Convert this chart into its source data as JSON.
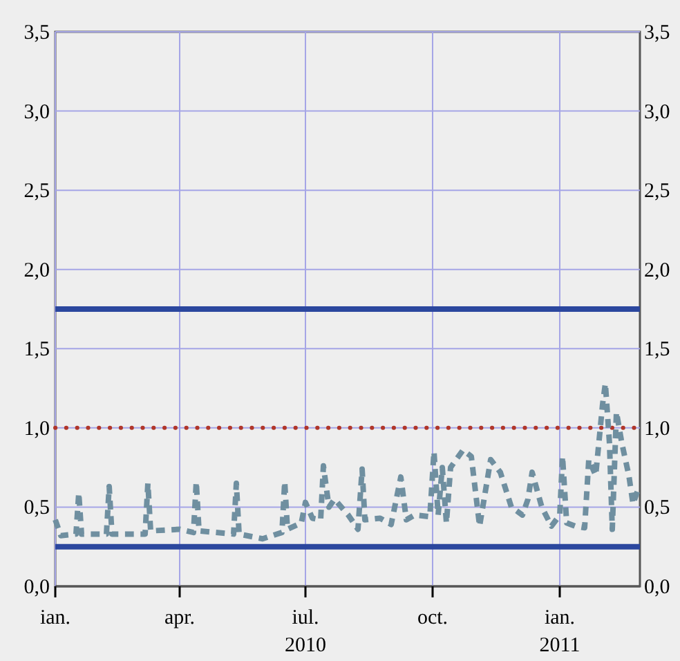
{
  "chart_data": {
    "type": "line",
    "x": [
      "2010-01-01",
      "2010-01-05",
      "2010-01-16",
      "2010-01-18",
      "2010-01-20",
      "2010-02-07",
      "2010-02-09",
      "2010-02-11",
      "2010-03-07",
      "2010-03-09",
      "2010-03-11",
      "2010-04-01",
      "2010-04-11",
      "2010-04-13",
      "2010-04-15",
      "2010-05-10",
      "2010-05-12",
      "2010-05-14",
      "2010-05-31",
      "2010-06-14",
      "2010-06-16",
      "2010-06-18",
      "2010-06-28",
      "2010-07-01",
      "2010-07-06",
      "2010-07-12",
      "2010-07-14",
      "2010-07-18",
      "2010-07-22",
      "2010-08-01",
      "2010-08-08",
      "2010-08-11",
      "2010-08-13",
      "2010-08-24",
      "2010-09-01",
      "2010-09-08",
      "2010-09-12",
      "2010-09-18",
      "2010-09-29",
      "2010-10-02",
      "2010-10-05",
      "2010-10-08",
      "2010-10-11",
      "2010-10-14",
      "2010-10-23",
      "2010-10-29",
      "2010-11-04",
      "2010-11-12",
      "2010-11-19",
      "2010-11-27",
      "2010-12-05",
      "2010-12-09",
      "2010-12-12",
      "2010-12-19",
      "2010-12-26",
      "2011-01-01",
      "2011-01-03",
      "2011-01-06",
      "2011-01-12",
      "2011-01-19",
      "2011-01-22",
      "2011-01-27",
      "2011-02-01",
      "2011-02-03",
      "2011-02-06",
      "2011-02-08",
      "2011-02-11",
      "2011-02-15",
      "2011-02-20",
      "2011-02-23",
      "2011-02-27"
    ],
    "series": [
      {
        "color": "#6f8fa0",
        "line_style": "dashed",
        "values": [
          0.42,
          0.32,
          0.33,
          0.59,
          0.33,
          0.33,
          0.63,
          0.33,
          0.33,
          0.65,
          0.35,
          0.36,
          0.34,
          0.66,
          0.35,
          0.33,
          0.65,
          0.33,
          0.3,
          0.34,
          0.66,
          0.36,
          0.4,
          0.53,
          0.43,
          0.42,
          0.76,
          0.5,
          0.55,
          0.45,
          0.36,
          0.74,
          0.42,
          0.43,
          0.39,
          0.69,
          0.42,
          0.45,
          0.44,
          0.85,
          0.45,
          0.75,
          0.4,
          0.75,
          0.86,
          0.82,
          0.38,
          0.8,
          0.72,
          0.5,
          0.45,
          0.55,
          0.72,
          0.5,
          0.38,
          0.45,
          0.82,
          0.4,
          0.38,
          0.37,
          0.8,
          0.7,
          1.15,
          1.28,
          0.9,
          0.36,
          1.1,
          0.9,
          0.7,
          0.52,
          0.62
        ]
      }
    ],
    "xlim": [
      "2010-01-01",
      "2011-02-28"
    ],
    "xticks": [
      {
        "value": "2010-01-01",
        "label": "ian."
      },
      {
        "value": "2010-04-01",
        "label": "apr."
      },
      {
        "value": "2010-07-01",
        "label": "iul.\n2010"
      },
      {
        "value": "2010-10-01",
        "label": "oct."
      },
      {
        "value": "2011-01-01",
        "label": "ian.\n2011"
      }
    ],
    "ylim": [
      0,
      3.5
    ],
    "yticks": [
      {
        "value": 0,
        "label": "0,0"
      },
      {
        "value": 0.5,
        "label": "0,5"
      },
      {
        "value": 1,
        "label": "1,0"
      },
      {
        "value": 1.5,
        "label": "1,5"
      },
      {
        "value": 2,
        "label": "2,0"
      },
      {
        "value": 2.5,
        "label": "2,5"
      },
      {
        "value": 3,
        "label": "3,0"
      },
      {
        "value": 3.5,
        "label": "3,5"
      }
    ],
    "y2lim": [
      0,
      3.5
    ],
    "y2ticks": [
      {
        "value": 0,
        "label": "0,0"
      },
      {
        "value": 0.5,
        "label": "0,5"
      },
      {
        "value": 1,
        "label": "1,0"
      },
      {
        "value": 1.5,
        "label": "1,5"
      },
      {
        "value": 2,
        "label": "2,0"
      },
      {
        "value": 2.5,
        "label": "2,5"
      },
      {
        "value": 3,
        "label": "3,0"
      },
      {
        "value": 3.5,
        "label": "3,5"
      }
    ],
    "ref_lines": [
      {
        "axis": "y",
        "value": 1.75,
        "color": "#2b479e",
        "line_style": "solid"
      },
      {
        "axis": "y",
        "value": 0.25,
        "color": "#2b479e",
        "line_style": "solid"
      },
      {
        "axis": "y",
        "value": 1,
        "color": "#b0362a",
        "line_style": "dotted"
      }
    ],
    "grid": true
  }
}
